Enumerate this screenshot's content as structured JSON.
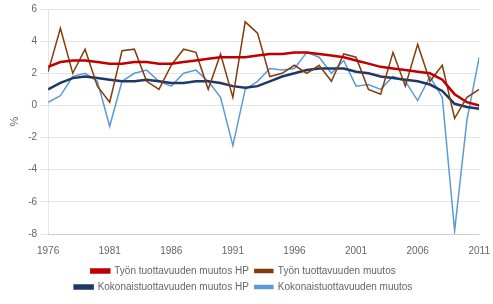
{
  "chart_data": {
    "type": "line",
    "x": [
      1976,
      1977,
      1978,
      1979,
      1980,
      1981,
      1982,
      1983,
      1984,
      1985,
      1986,
      1987,
      1988,
      1989,
      1990,
      1991,
      1992,
      1993,
      1994,
      1995,
      1996,
      1997,
      1998,
      1999,
      2000,
      2001,
      2002,
      2003,
      2004,
      2005,
      2006,
      2007,
      2008,
      2009,
      2010,
      2011
    ],
    "series": [
      {
        "name": "Kokonaistuottavuuden muutos",
        "color": "#5b9bd5",
        "values": [
          0.2,
          0.6,
          1.8,
          2.0,
          1.5,
          -1.3,
          1.5,
          2.0,
          2.2,
          1.5,
          1.2,
          2.0,
          2.2,
          1.5,
          0.5,
          -2.5,
          1.0,
          1.5,
          2.3,
          2.2,
          2.3,
          3.3,
          3.0,
          2.0,
          2.8,
          1.2,
          1.3,
          1.0,
          1.8,
          1.5,
          0.3,
          1.8,
          0.5,
          -7.8,
          -0.9,
          3.0
        ]
      },
      {
        "name": "Kokonaistuottavuuden muutos HP",
        "color": "#1f3864",
        "values": [
          1.0,
          1.4,
          1.7,
          1.8,
          1.7,
          1.6,
          1.5,
          1.5,
          1.6,
          1.5,
          1.4,
          1.4,
          1.5,
          1.5,
          1.4,
          1.2,
          1.1,
          1.2,
          1.5,
          1.8,
          2.0,
          2.2,
          2.3,
          2.3,
          2.3,
          2.1,
          2.0,
          1.8,
          1.7,
          1.6,
          1.5,
          1.3,
          0.9,
          0.1,
          -0.1,
          -0.2
        ]
      },
      {
        "name": "Työn tuottavuuden muutos",
        "color": "#843c0c",
        "values": [
          2.1,
          4.8,
          2.0,
          3.5,
          1.2,
          0.2,
          3.4,
          3.5,
          1.5,
          1.0,
          2.5,
          3.5,
          3.3,
          1.0,
          3.2,
          0.5,
          5.2,
          4.5,
          1.8,
          2.0,
          2.5,
          2.0,
          2.5,
          1.5,
          3.2,
          3.0,
          1.0,
          0.7,
          3.3,
          1.2,
          3.8,
          1.5,
          2.5,
          -0.8,
          0.5,
          1.0
        ]
      },
      {
        "name": "Työn tuottavuuden muutos HP",
        "color": "#c00000",
        "values": [
          2.4,
          2.7,
          2.8,
          2.8,
          2.7,
          2.6,
          2.6,
          2.7,
          2.7,
          2.6,
          2.6,
          2.7,
          2.8,
          2.9,
          3.0,
          3.0,
          3.0,
          3.1,
          3.2,
          3.2,
          3.3,
          3.3,
          3.2,
          3.1,
          3.0,
          2.8,
          2.6,
          2.4,
          2.3,
          2.2,
          2.1,
          2.0,
          1.6,
          0.7,
          0.2,
          0.0
        ]
      }
    ],
    "ylabel": "%",
    "xlim": [
      1976,
      2011
    ],
    "xticks": [
      1976,
      1981,
      1986,
      1991,
      1996,
      2001,
      2006,
      2011
    ],
    "ylim": [
      -8,
      6
    ],
    "yticks": [
      -8,
      -6,
      -4,
      -2,
      0,
      2,
      4,
      6
    ],
    "grid": "y",
    "legend": "bottom"
  }
}
